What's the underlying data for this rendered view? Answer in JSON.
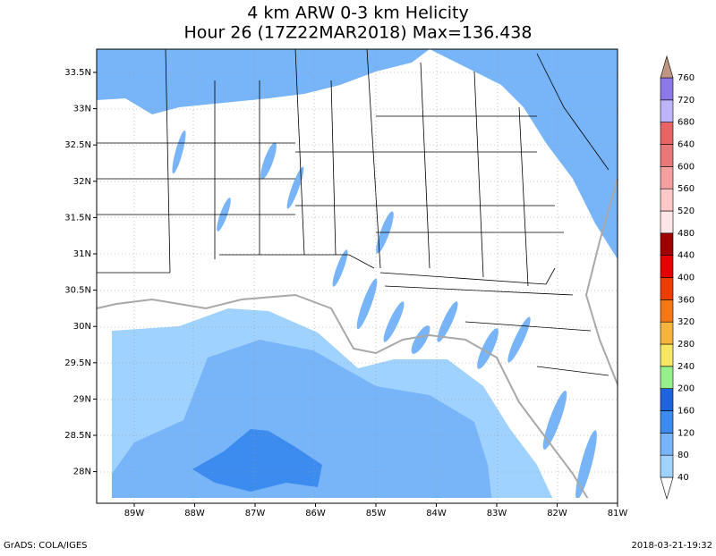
{
  "title": {
    "line1": "4 km ARW 0-3 km Helicity",
    "line2": "Hour 26 (17Z22MAR2018) Max=136.438"
  },
  "lon_labels": [
    "89W",
    "88W",
    "87W",
    "86W",
    "85W",
    "84W",
    "83W",
    "82W",
    "81W"
  ],
  "lat_labels": [
    "33.5N",
    "33N",
    "32.5N",
    "32N",
    "31.5N",
    "31N",
    "30.5N",
    "30N",
    "29.5N",
    "29N",
    "28.5N",
    "28N"
  ],
  "colorbar": {
    "levels": [
      40,
      80,
      120,
      160,
      200,
      240,
      280,
      320,
      360,
      400,
      440,
      480,
      520,
      560,
      600,
      640,
      680,
      720,
      760
    ],
    "colors": [
      "#ffffff",
      "#a0d2ff",
      "#78b4f8",
      "#3c8cf0",
      "#1e64dc",
      "#96f08c",
      "#f5e664",
      "#f5b43c",
      "#f57814",
      "#f03c00",
      "#e60000",
      "#a00000",
      "#ffe6e6",
      "#ffc8c8",
      "#f5a0a0",
      "#e67878",
      "#e66464",
      "#beb4fa",
      "#8c78e6",
      "#4a3cc8",
      "#be9682"
    ]
  },
  "footer": {
    "left": "GrADS: COLA/IGES",
    "right": "2018-03-21-19:32"
  }
}
